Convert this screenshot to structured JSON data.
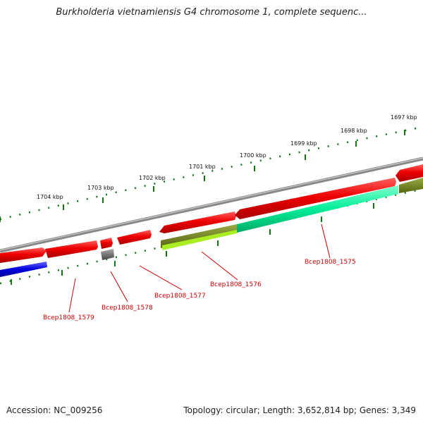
{
  "title": "Burkholderia vietnamiensis G4 chromosome 1, complete sequenc...",
  "footer": {
    "accession": "Accession: NC_009256",
    "summary": "Topology: circular; Length: 3,652,814 bp; Genes: 3,349"
  },
  "scale_labels": [
    "1697 kbp",
    "1698 kbp",
    "1699 kbp",
    "1700 kbp",
    "1701 kbp",
    "1702 kbp",
    "1703 kbp",
    "1704 kbp"
  ],
  "gene_labels": [
    "Bcep1808_1575",
    "Bcep1808_1576",
    "Bcep1808_1577",
    "Bcep1808_1578",
    "Bcep1808_1579"
  ],
  "colors": {
    "forward": "#ee0000",
    "green": "#00ee99",
    "olive": "#667722",
    "lime": "#aaee22",
    "blue": "#0000dd",
    "gray": "#555555",
    "ticks": "#117711",
    "label_red": "#cc0000"
  }
}
